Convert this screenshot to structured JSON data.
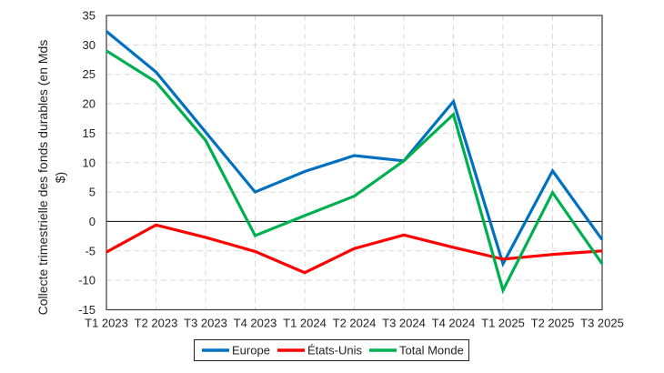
{
  "chart_data": {
    "type": "line",
    "title": "",
    "xlabel": "",
    "ylabel": "Collecte trimestrielle des fonds durables (en Mds $)",
    "ylabel_lines": [
      "Collecte trimestrielle des fonds durables (en Mds",
      "$)"
    ],
    "ylim": [
      -15,
      35
    ],
    "yticks": [
      -15,
      -10,
      -5,
      0,
      5,
      10,
      15,
      20,
      25,
      30,
      35
    ],
    "ytick_labels": [
      "-15",
      "-10",
      "-5",
      "0",
      "5",
      "10",
      "15",
      "20",
      "25",
      "30",
      "35"
    ],
    "grid": true,
    "legend_position": "bottom",
    "categories": [
      "T1 2023",
      "T2 2023",
      "T3 2023",
      "T4 2023",
      "T1 2024",
      "T2 2024",
      "T3 2024",
      "T4 2024",
      "T1 2025",
      "T2 2025",
      "T3 2025"
    ],
    "series": [
      {
        "name": "Europe",
        "color": "#0070C0",
        "values": [
          32.3,
          25.4,
          15.2,
          5.0,
          8.5,
          11.2,
          10.3,
          20.4,
          -7.2,
          8.6,
          -3.1
        ]
      },
      {
        "name": "États-Unis",
        "color": "#FF0000",
        "values": [
          -5.2,
          -0.6,
          -2.7,
          -5.1,
          -8.7,
          -4.6,
          -2.3,
          -4.4,
          -6.4,
          -5.6,
          -5.0
        ]
      },
      {
        "name": "Total Monde",
        "color": "#00B050",
        "values": [
          29.0,
          23.7,
          13.8,
          -2.4,
          1.0,
          4.3,
          10.3,
          18.2,
          -11.7,
          4.9,
          -7.2
        ]
      }
    ]
  },
  "legend": {
    "items": [
      {
        "label": "Europe",
        "color": "#0070C0"
      },
      {
        "label": "États-Unis",
        "color": "#FF0000"
      },
      {
        "label": "Total Monde",
        "color": "#00B050"
      }
    ]
  }
}
